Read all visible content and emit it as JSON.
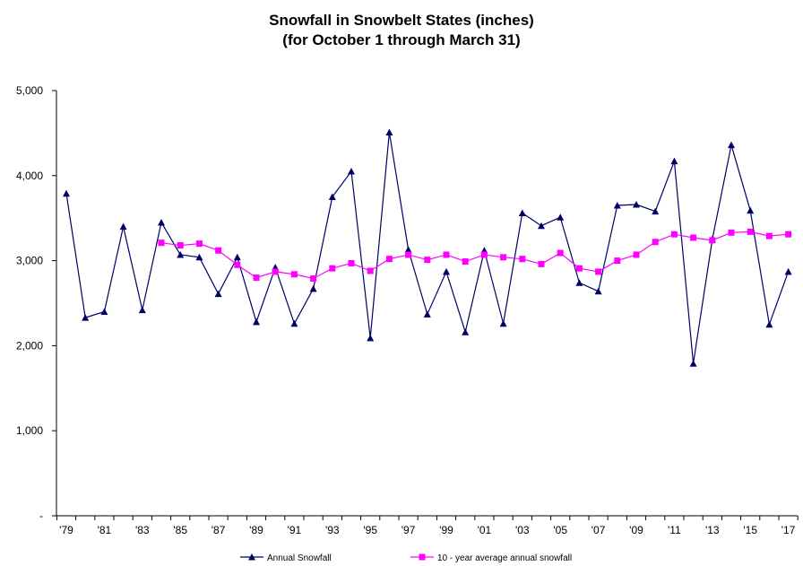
{
  "chart_data": {
    "type": "line",
    "title": "Snowfall in Snowbelt States (inches)",
    "subtitle": "(for October 1 through March 31)",
    "xlabel": "",
    "ylabel": "",
    "ylim": [
      0,
      5000
    ],
    "y_ticks": [
      "-",
      "1,000",
      "2,000",
      "3,000",
      "4,000",
      "5,000"
    ],
    "x_tick_labels": [
      "'79",
      "'81",
      "'83",
      "'85",
      "'87",
      "'89",
      "'91",
      "'93",
      "'95",
      "'97",
      "'99",
      "'01",
      "'03",
      "'05",
      "'07",
      "'09",
      "'11",
      "'13",
      "'15",
      "'17"
    ],
    "x": [
      1979,
      1980,
      1981,
      1982,
      1983,
      1984,
      1985,
      1986,
      1987,
      1988,
      1989,
      1990,
      1991,
      1992,
      1993,
      1994,
      1995,
      1996,
      1997,
      1998,
      1999,
      2000,
      2001,
      2002,
      2003,
      2004,
      2005,
      2006,
      2007,
      2008,
      2009,
      2010,
      2011,
      2012,
      2013,
      2014,
      2015,
      2016,
      2017
    ],
    "legend_position": "bottom",
    "grid": false,
    "series": [
      {
        "name": "Annual Snowfall",
        "color": "#000066",
        "marker": "triangle",
        "values": [
          3790,
          2330,
          2400,
          3400,
          2420,
          3450,
          3070,
          3040,
          2610,
          3040,
          2280,
          2920,
          2260,
          2670,
          3750,
          4050,
          2090,
          4510,
          3130,
          2370,
          2870,
          2160,
          3120,
          2260,
          3560,
          3410,
          3510,
          2740,
          2640,
          3650,
          3660,
          3580,
          4170,
          1790,
          3250,
          4360,
          3590,
          2250,
          2870
        ]
      },
      {
        "name": "10 - year average annual snowfall",
        "color": "#ff00ff",
        "marker": "square",
        "values": [
          null,
          null,
          null,
          null,
          null,
          3210,
          3180,
          3200,
          3120,
          2950,
          2800,
          2870,
          2840,
          2790,
          2910,
          2970,
          2880,
          3020,
          3070,
          3010,
          3070,
          2990,
          3070,
          3040,
          3020,
          2960,
          3090,
          2910,
          2870,
          3000,
          3070,
          3220,
          3310,
          3270,
          3240,
          3330,
          3340,
          3290,
          3310
        ]
      }
    ]
  }
}
